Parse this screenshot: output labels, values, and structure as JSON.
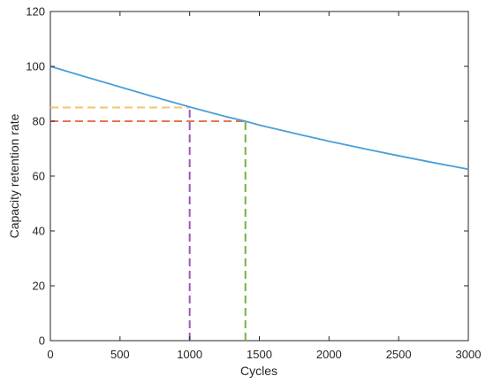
{
  "chart_data": {
    "type": "line",
    "xlabel": "Cycles",
    "ylabel": "Capacity retention rate",
    "xlim": [
      0,
      3000
    ],
    "ylim": [
      0,
      120
    ],
    "xticks": [
      0,
      500,
      1000,
      1500,
      2000,
      2500,
      3000
    ],
    "yticks": [
      0,
      20,
      40,
      60,
      80,
      100,
      120
    ],
    "grid": false,
    "series": [
      {
        "color": "#4a9fd8",
        "x": [
          0,
          250,
          500,
          750,
          1000,
          1250,
          1400,
          1500,
          1750,
          2000,
          2250,
          2500,
          2750,
          3000
        ],
        "y": [
          100,
          96.2,
          92.5,
          88.8,
          85.2,
          81.8,
          80,
          78.6,
          75.6,
          72.7,
          70.0,
          67.4,
          64.9,
          62.5
        ]
      }
    ],
    "reference_lines": [
      {
        "orientation": "horizontal",
        "y": 85,
        "x_from": 0,
        "x_to": 1000,
        "color": "#f5c36b",
        "style": "dashed"
      },
      {
        "orientation": "horizontal",
        "y": 80,
        "x_from": 0,
        "x_to": 1400,
        "color": "#e8734f",
        "style": "dashed"
      },
      {
        "orientation": "vertical",
        "x": 1000,
        "y_from": 0,
        "y_to": 85,
        "color": "#9b59b6",
        "style": "dashed"
      },
      {
        "orientation": "vertical",
        "x": 1400,
        "y_from": 0,
        "y_to": 80,
        "color": "#77b33c",
        "style": "dashed"
      }
    ]
  }
}
